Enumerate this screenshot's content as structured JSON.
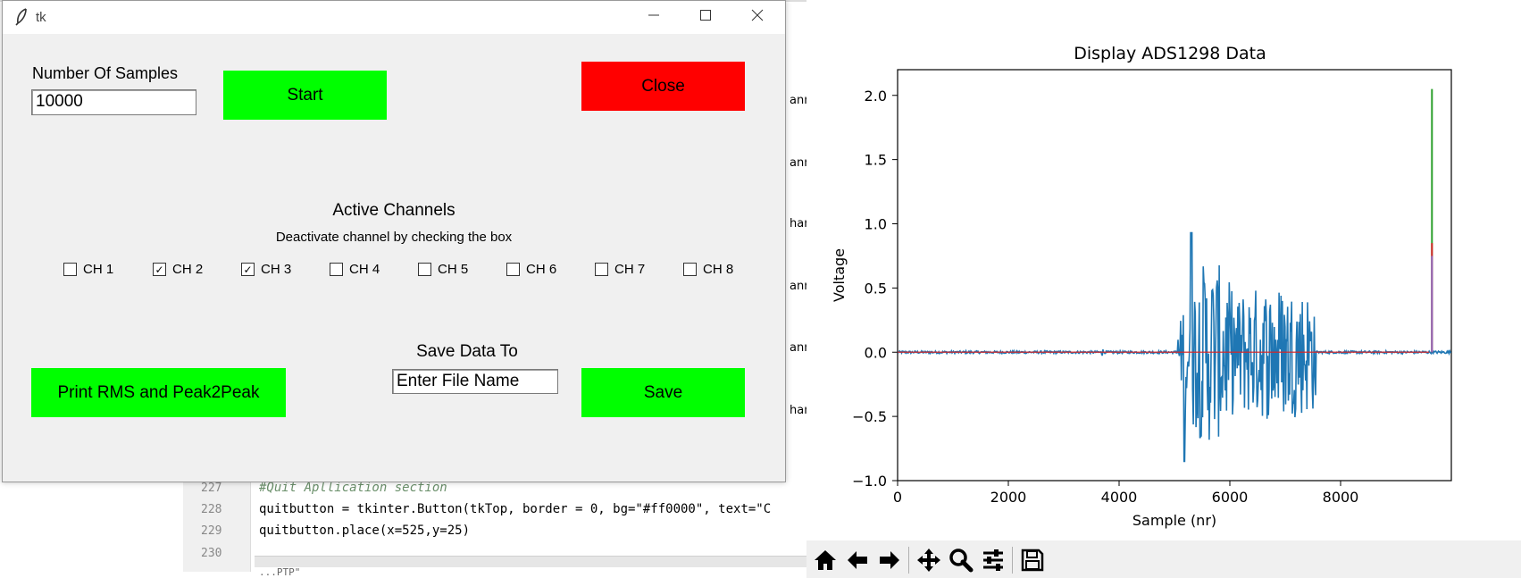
{
  "tk_window": {
    "title": "tk",
    "samples_label": "Number Of Samples",
    "samples_value": "10000",
    "start_label": "Start",
    "close_label": "Close",
    "active_channels_title": "Active Channels",
    "active_channels_hint": "Deactivate channel by checking the box",
    "channels": [
      {
        "label": "CH 1",
        "checked": false
      },
      {
        "label": "CH 2",
        "checked": true
      },
      {
        "label": "CH 3",
        "checked": true
      },
      {
        "label": "CH 4",
        "checked": false
      },
      {
        "label": "CH 5",
        "checked": false
      },
      {
        "label": "CH 6",
        "checked": false
      },
      {
        "label": "CH 7",
        "checked": false
      },
      {
        "label": "CH 8",
        "checked": false
      }
    ],
    "print_label": "Print RMS and Peak2Peak",
    "save_to_label": "Save Data To",
    "filename_value": "Enter File Name",
    "save_label": "Save",
    "colors": {
      "green": "#00ff00",
      "red": "#ff0000",
      "bg": "#f0f0f0"
    }
  },
  "editor": {
    "lines": [
      {
        "num": "227",
        "text": "#Quit Apllication section"
      },
      {
        "num": "228",
        "text": "quitbutton = tkinter.Button(tkTop, border = 0, bg=\"#ff0000\", text=\"C"
      },
      {
        "num": "229",
        "text": "quitbutton.place(x=525,y=25)"
      },
      {
        "num": "230",
        "text": ""
      }
    ],
    "partial_right": [
      "anne",
      "anne",
      "hann",
      "anne",
      "anne",
      "hann"
    ],
    "footer_fragment": "...PTP\""
  },
  "chart_data": {
    "type": "line",
    "title": "Display ADS1298 Data",
    "xlabel": "Sample (nr)",
    "ylabel": "Voltage",
    "xlim": [
      0,
      10000
    ],
    "ylim": [
      -1.0,
      2.2
    ],
    "xticks": [
      "0",
      "2000",
      "4000",
      "6000",
      "8000"
    ],
    "yticks": [
      "−1.0",
      "−0.5",
      "0.0",
      "0.5",
      "1.0",
      "1.5",
      "2.0"
    ],
    "grid": false,
    "series": [
      {
        "color": "#1f77b4",
        "burst_range": [
          5000,
          7550
        ],
        "min": -0.85,
        "max": 0.93,
        "baseline": 0.0
      },
      {
        "color": "#2ca02c",
        "spike_at": 9650,
        "max": 2.05
      },
      {
        "color": "#d62728",
        "spike_at": 9650,
        "max": 0.85
      },
      {
        "color": "#9467bd",
        "spike_at": 9650,
        "max": 0.75
      }
    ]
  },
  "figure_toolbar": {
    "icons": [
      "home-icon",
      "back-arrow-icon",
      "forward-arrow-icon",
      "pan-icon",
      "zoom-icon",
      "configure-icon",
      "save-icon"
    ]
  }
}
